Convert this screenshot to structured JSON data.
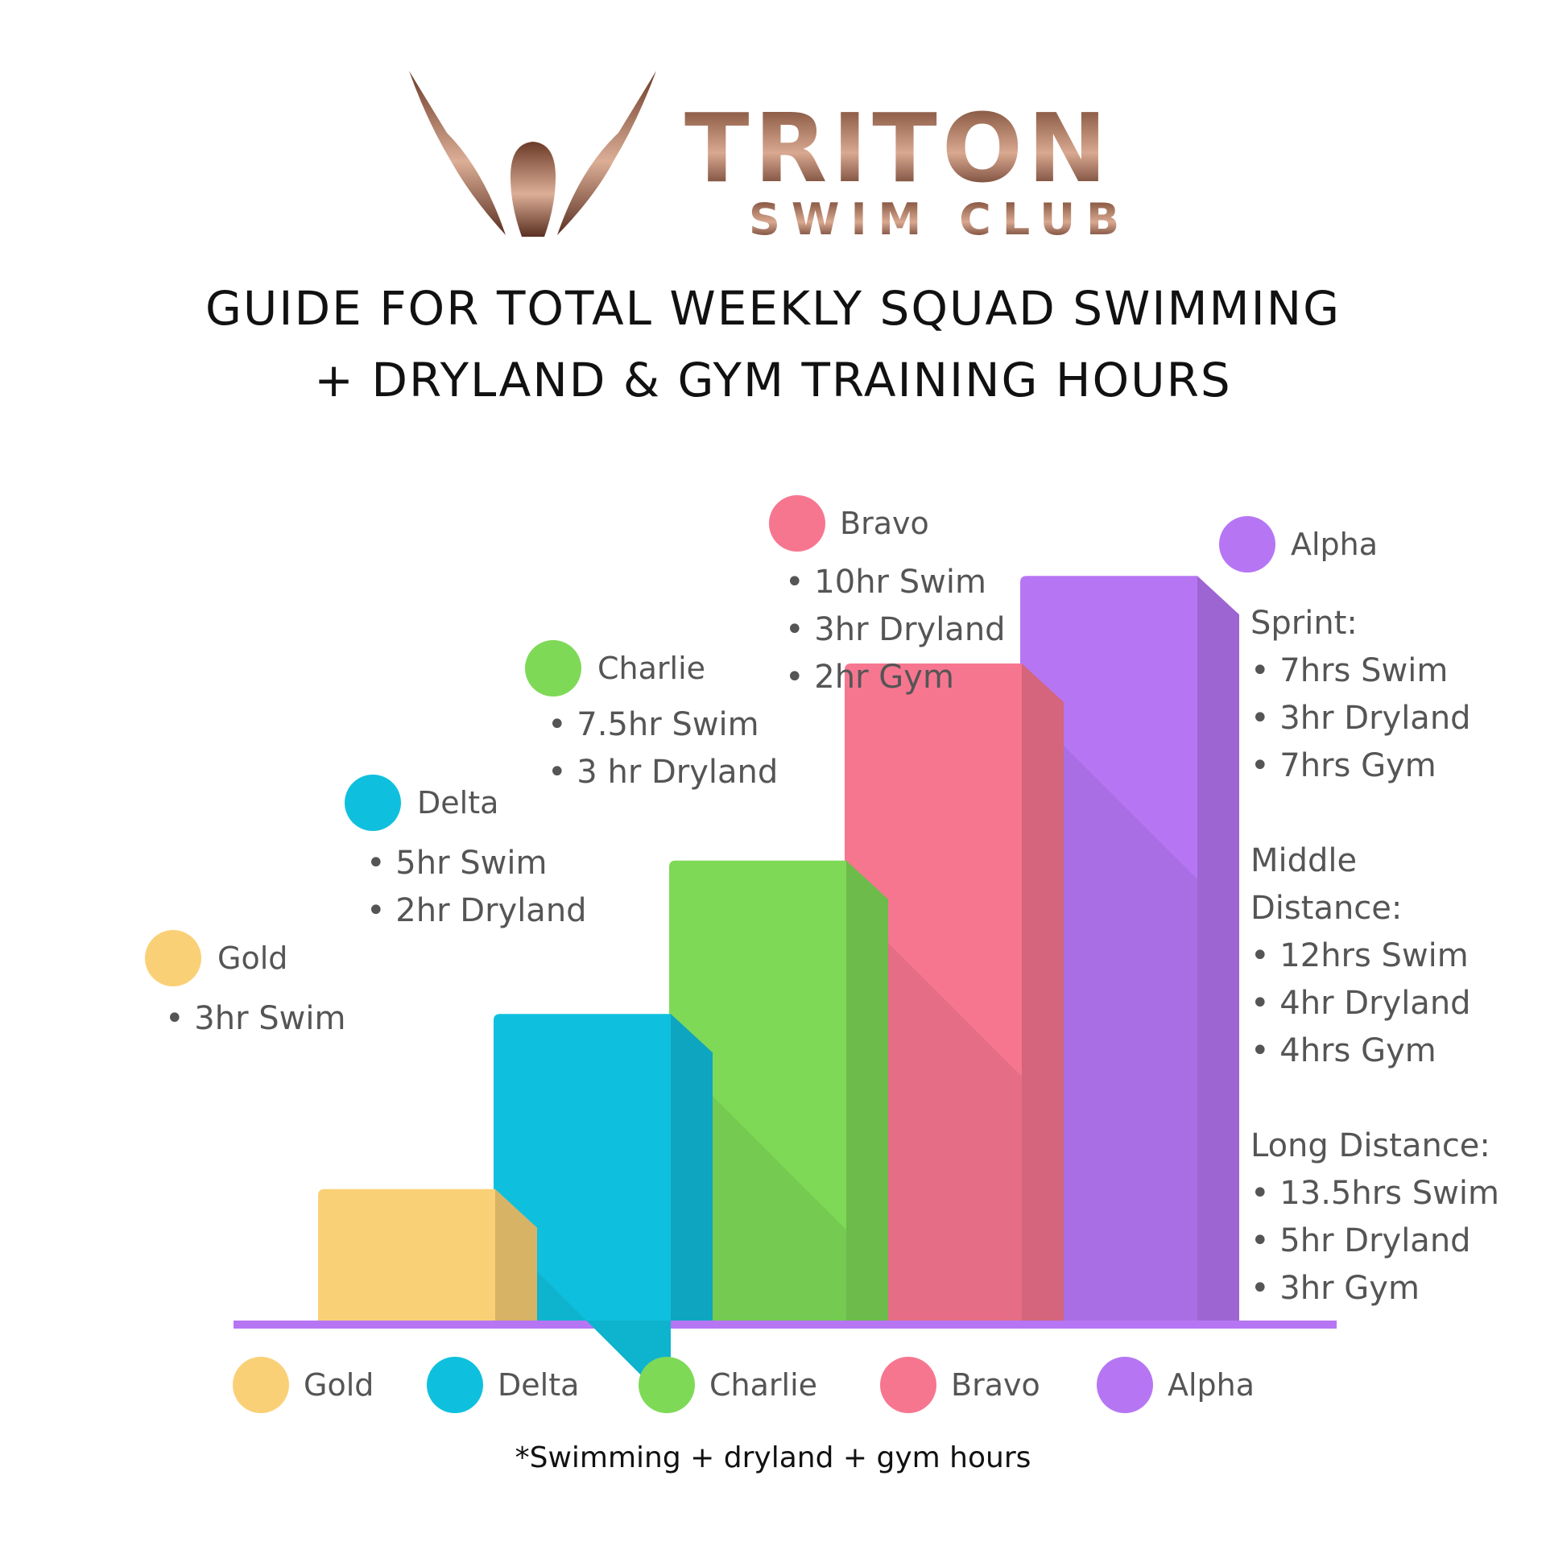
{
  "logo": {
    "name": "TRITON",
    "subtitle": "SWIM CLUB"
  },
  "title_line1": "GUIDE FOR TOTAL WEEKLY SQUAD SWIMMING",
  "title_line2": "+ DRYLAND & GYM TRAINING HOURS",
  "footnote": "*Swimming + dryland + gym hours",
  "colors": {
    "Gold": "#fad077",
    "Delta": "#0fc0de",
    "Charlie": "#7ed957",
    "Bravo": "#f67690",
    "Alpha": "#b676f4",
    "axis": "#b676f4",
    "text": "#555555"
  },
  "chart_data": {
    "type": "bar",
    "categories": [
      "Gold",
      "Delta",
      "Charlie",
      "Bravo",
      "Alpha"
    ],
    "values": [
      3,
      7,
      10.5,
      15,
      17
    ],
    "legend": [
      "Gold",
      "Delta",
      "Charlie",
      "Bravo",
      "Alpha"
    ],
    "legend_position": "bottom",
    "annotations": [
      {
        "squad": "Gold",
        "lines": [
          "• 3hr Swim"
        ]
      },
      {
        "squad": "Delta",
        "lines": [
          "• 5hr Swim",
          "• 2hr Dryland"
        ]
      },
      {
        "squad": "Charlie",
        "lines": [
          "• 7.5hr Swim",
          "• 3 hr Dryland"
        ]
      },
      {
        "squad": "Bravo",
        "lines": [
          "• 10hr Swim",
          "• 3hr Dryland",
          "• 2hr Gym"
        ]
      },
      {
        "squad": "Alpha",
        "groups": [
          {
            "heading": [
              "Sprint:"
            ],
            "lines": [
              "• 7hrs Swim",
              "• 3hr Dryland",
              "• 7hrs Gym"
            ]
          },
          {
            "heading": [
              "Middle",
              "Distance:"
            ],
            "lines": [
              "• 12hrs Swim",
              "• 4hr Dryland",
              "• 4hrs Gym"
            ]
          },
          {
            "heading": [
              "Long Distance:"
            ],
            "lines": [
              "• 13.5hrs Swim",
              "• 5hr Dryland",
              "• 3hr Gym"
            ]
          }
        ]
      }
    ]
  }
}
